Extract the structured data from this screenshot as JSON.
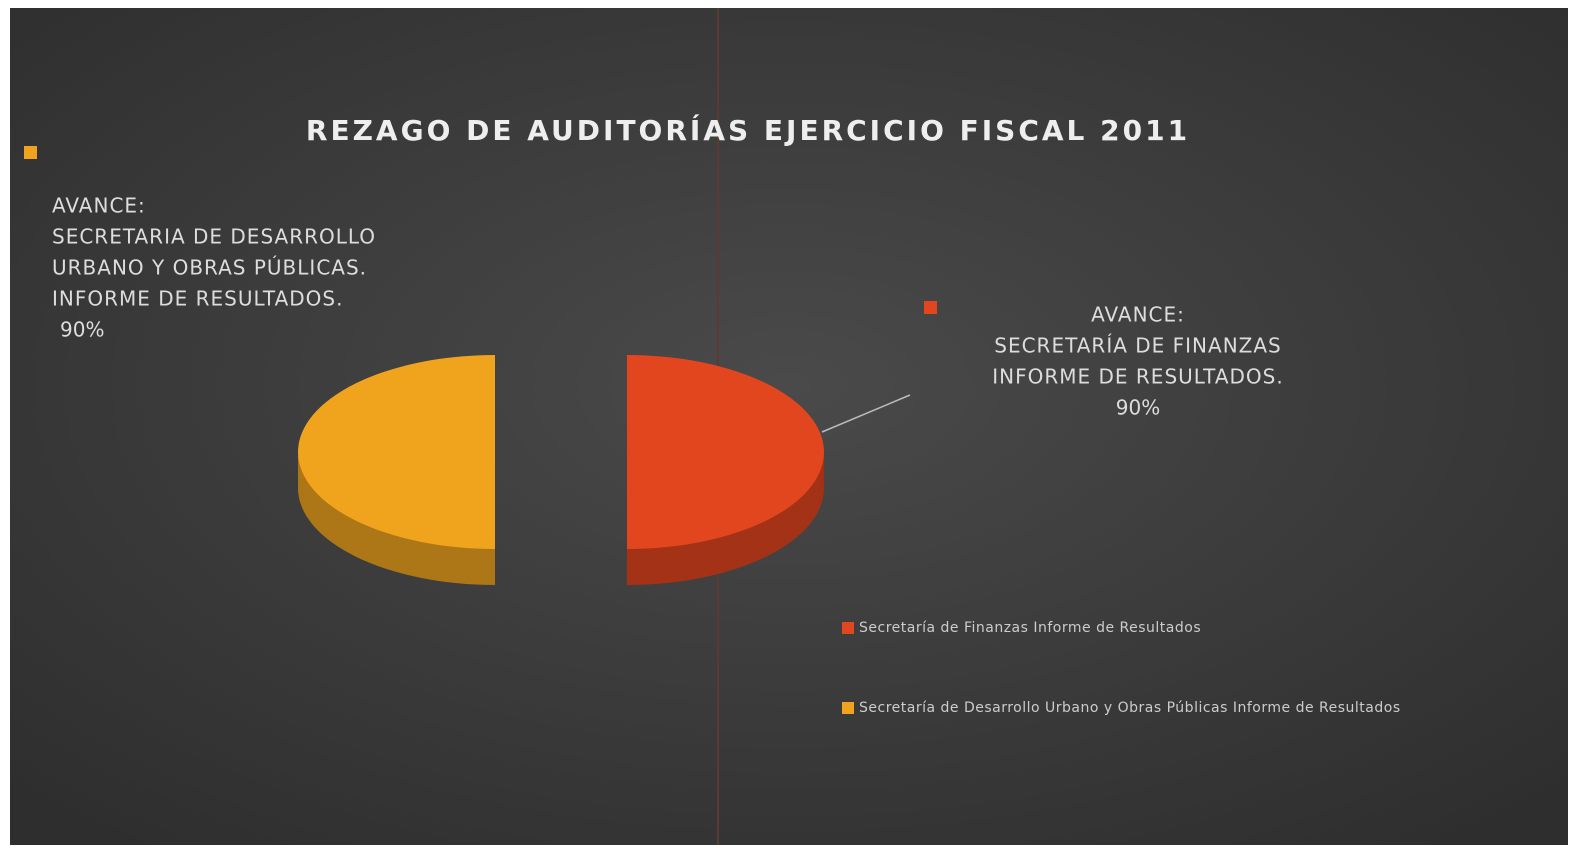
{
  "chart_data": {
    "type": "pie",
    "title": "REZAGO DE AUDITORÍAS EJERCICIO FISCAL 2011",
    "categories": [
      "Secretaría de Finanzas Informe de Resultados",
      "Secretaría de Desarrollo Urbano y Obras Públicas Informe de Resultados"
    ],
    "values": [
      90,
      90
    ],
    "value_labels": [
      "90%",
      "90%"
    ],
    "colors": [
      "#e2461e",
      "#f0a41e"
    ],
    "annotations": [
      [
        "AVANCE:",
        "SECRETARÍA DE FINANZAS",
        "INFORME DE RESULTADOS."
      ],
      [
        "AVANCE:",
        "SECRETARIA DE DESARROLLO",
        "URBANO Y OBRAS PÚBLICAS.",
        "INFORME DE RESULTADOS."
      ]
    ],
    "legend": "right"
  }
}
